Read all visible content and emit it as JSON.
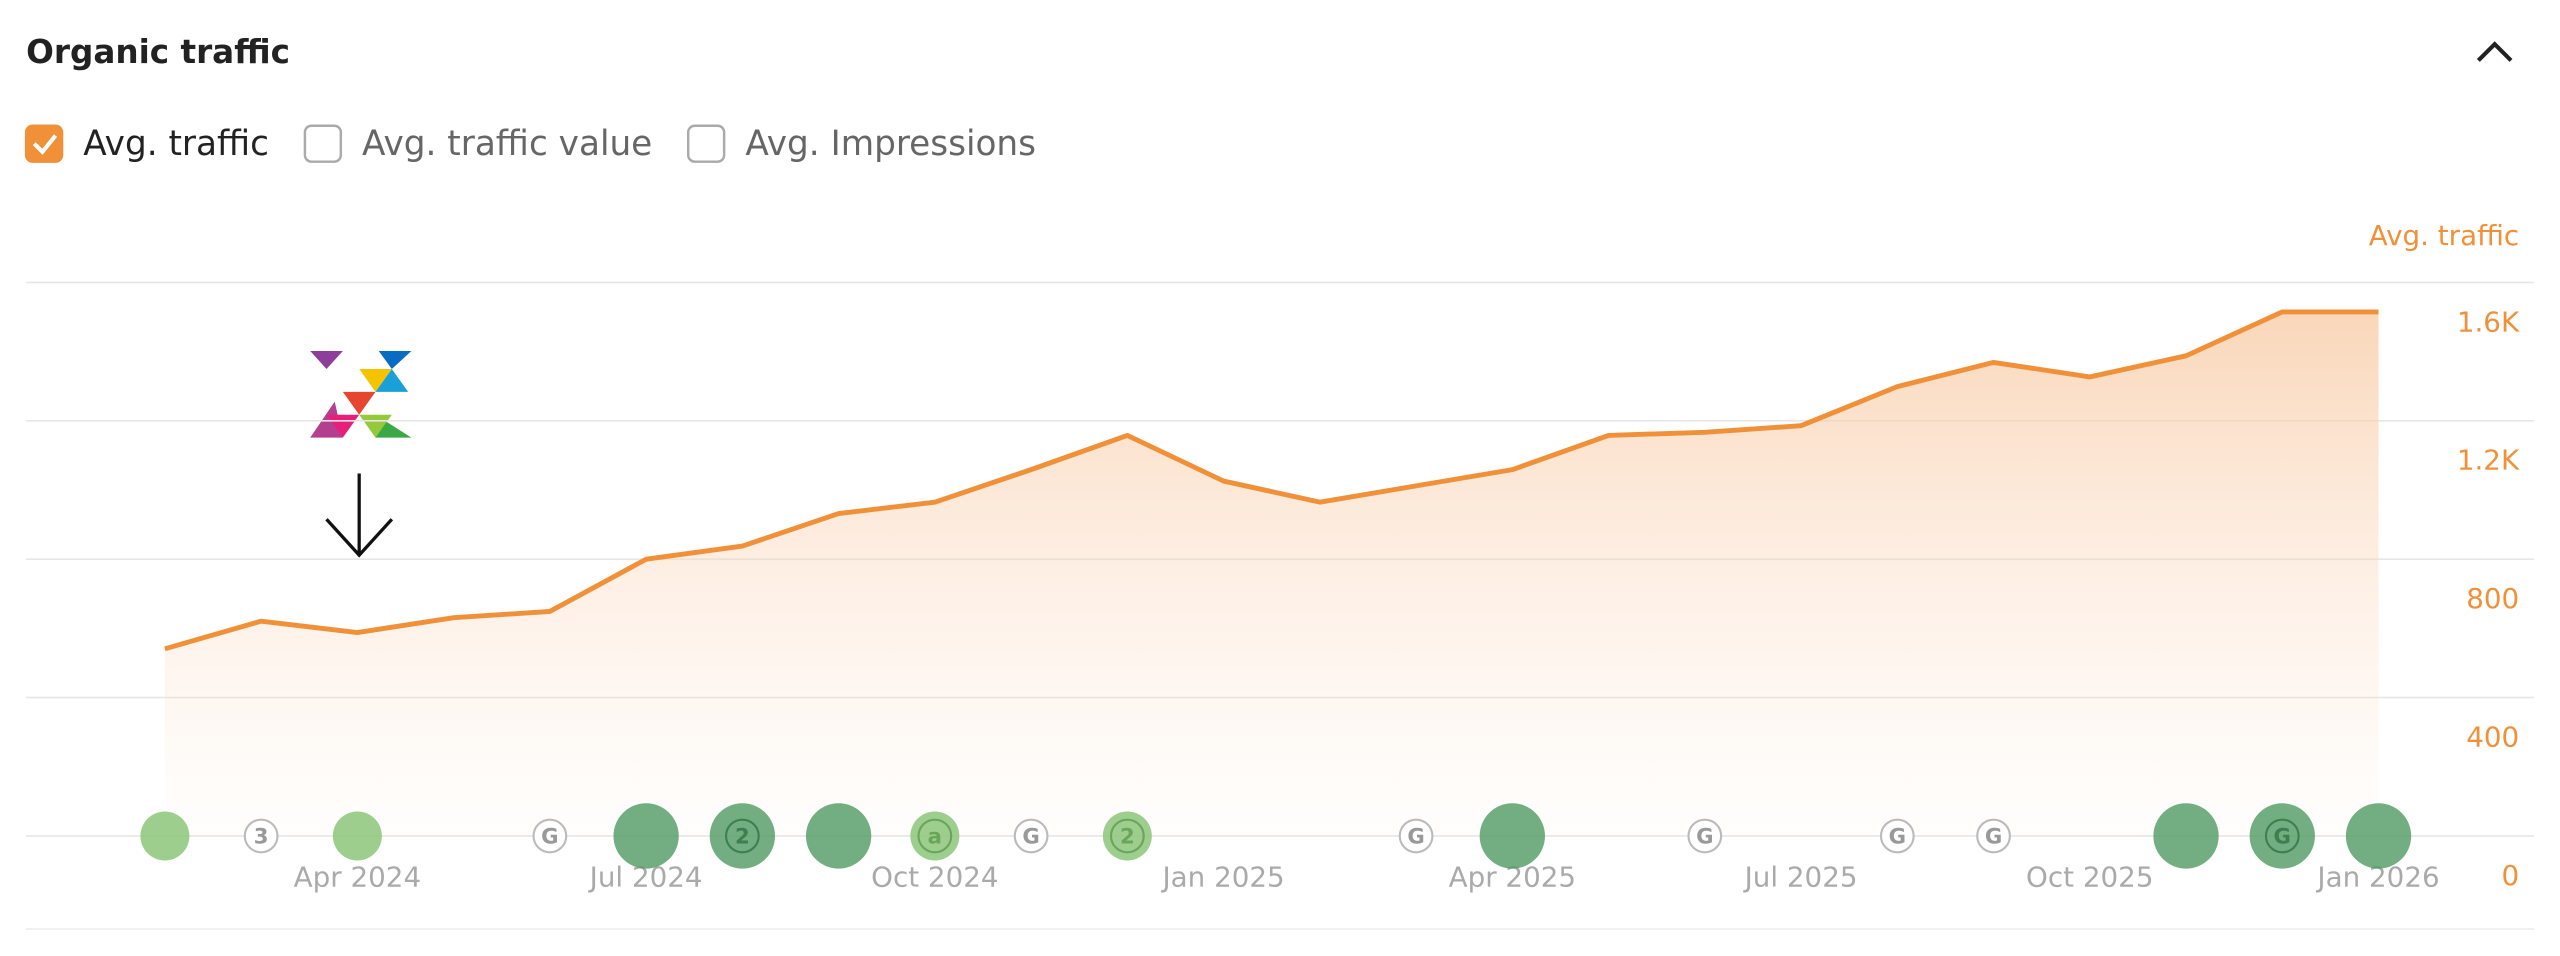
{
  "header": {
    "title": "Organic traffic"
  },
  "toggles": [
    {
      "label": "Avg. traffic",
      "checked": true
    },
    {
      "label": "Avg. traffic value",
      "checked": false
    },
    {
      "label": "Avg. Impressions",
      "checked": false
    }
  ],
  "chart_data": {
    "type": "area",
    "y_axis_label": "Avg. traffic",
    "color": "#f0913a",
    "categories": [
      null,
      "Apr 2024",
      null,
      null,
      "Jul 2024",
      null,
      null,
      "Oct 2024",
      null,
      null,
      "Jan 2025",
      null,
      null,
      "Apr 2025",
      null,
      null,
      "Jul 2025",
      null,
      null,
      "Oct 2025",
      null,
      null,
      "Jan 2026",
      null
    ],
    "label_offset": 1,
    "values": [
      541,
      621,
      588,
      631,
      649,
      800,
      838,
      932,
      965,
      1059,
      1158,
      1026,
      965,
      1012,
      1059,
      1158,
      1167,
      1186,
      1299,
      1369,
      1327,
      1388,
      1515,
      1515
    ],
    "ylim": [
      0,
      1600
    ],
    "yticks": [
      0,
      400,
      800,
      {
        "value": 1200,
        "label": "1.2K"
      },
      {
        "value": 1600,
        "label": "1.6K"
      }
    ],
    "grid": true,
    "events": [
      {
        "index": 0,
        "kind": "light",
        "label": null
      },
      {
        "index": 1,
        "kind": "outline",
        "label": "3"
      },
      {
        "index": 2,
        "kind": "light",
        "label": null
      },
      {
        "index": 4,
        "kind": "outline",
        "label": "G"
      },
      {
        "index": 5,
        "kind": "dark",
        "label": null
      },
      {
        "index": 6,
        "kind": "dark",
        "label": "2"
      },
      {
        "index": 7,
        "kind": "dark",
        "label": null
      },
      {
        "index": 8,
        "kind": "light",
        "label": "a"
      },
      {
        "index": 9,
        "kind": "outline",
        "label": "G"
      },
      {
        "index": 10,
        "kind": "light",
        "label": "2"
      },
      {
        "index": 13,
        "kind": "outline",
        "label": "G"
      },
      {
        "index": 14,
        "kind": "dark",
        "label": null
      },
      {
        "index": 16,
        "kind": "outline",
        "label": "G"
      },
      {
        "index": 18,
        "kind": "outline",
        "label": "G"
      },
      {
        "index": 19,
        "kind": "outline",
        "label": "G"
      },
      {
        "index": 21,
        "kind": "dark",
        "label": null
      },
      {
        "index": 22,
        "kind": "dark",
        "label": "G"
      },
      {
        "index": 23,
        "kind": "dark",
        "label": null
      }
    ]
  }
}
